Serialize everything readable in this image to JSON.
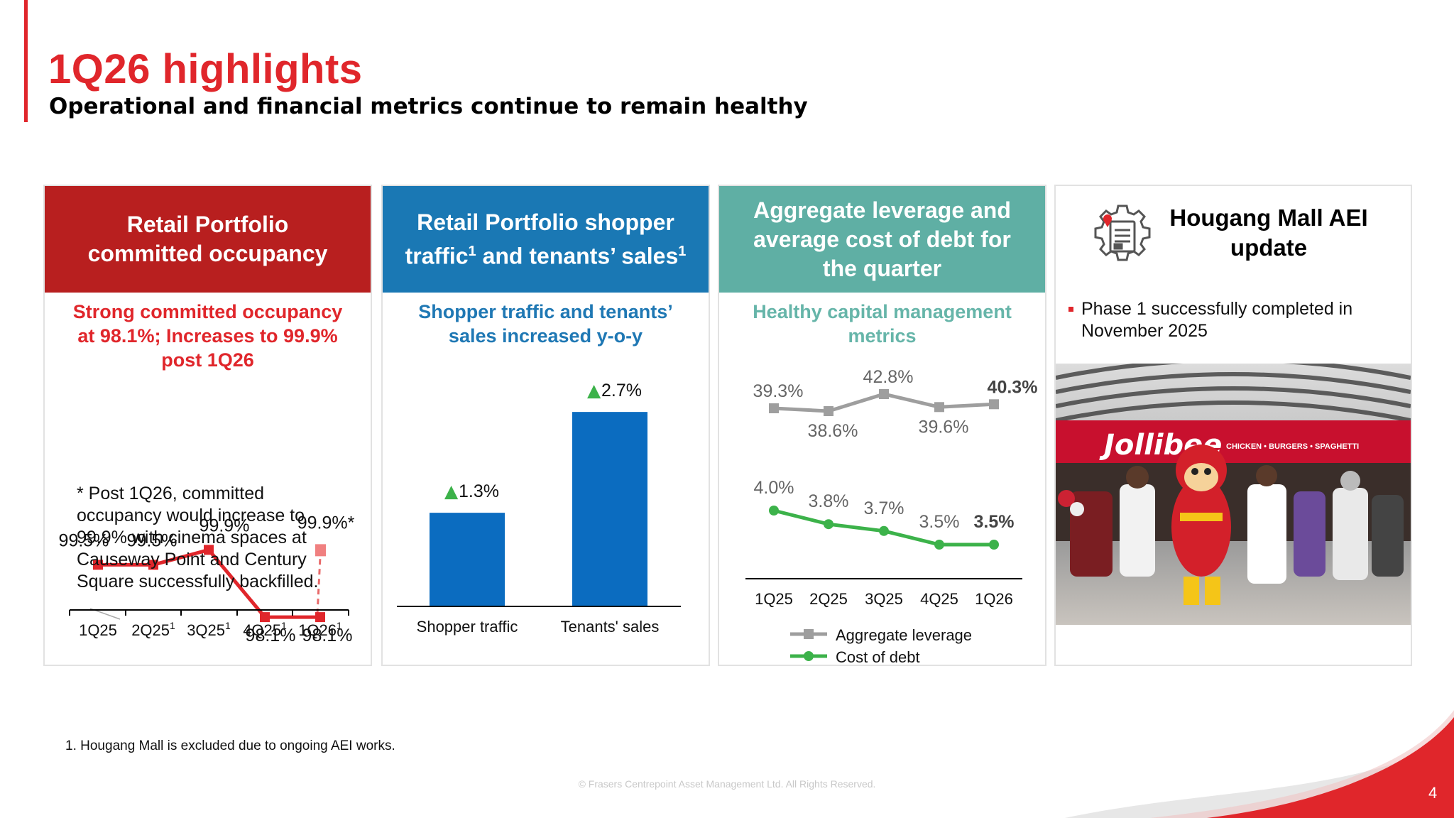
{
  "header": {
    "title": "1Q26 highlights",
    "subtitle": "Operational and financial metrics continue to remain healthy"
  },
  "colors": {
    "brand_red": "#e0262b",
    "panel_red": "#b81f1f",
    "panel_blue": "#1a78b4",
    "panel_teal": "#5fafa4",
    "bar_blue": "#0b6cc0",
    "green": "#3cb24a",
    "grey": "#9e9e9e",
    "sub_blue": "#1f78b4",
    "sub_teal": "#66b5a9"
  },
  "panels": {
    "occupancy": {
      "heading_line1": "Retail Portfolio",
      "heading_line2": "committed occupancy",
      "subheading_line1": "Strong committed occupancy",
      "subheading_line2": "at 98.1%; Increases to 99.9%",
      "subheading_line3": "post 1Q26",
      "note_line1": "* Post 1Q26, committed",
      "note_line2": "occupancy would increase to",
      "note_line3": "99.9% with cinema spaces at",
      "note_line4": "Causeway Point and Century",
      "note_line5": "Square successfully backfilled."
    },
    "traffic": {
      "heading_line1": "Retail Portfolio shopper",
      "heading_line2a": "traffic",
      "heading_line2b": " and tenants’ sales",
      "heading_sup": "1",
      "subheading_line1": "Shopper traffic and tenants’",
      "subheading_line2": "sales increased y-o-y"
    },
    "leverage": {
      "heading_line1": "Aggregate leverage and",
      "heading_line2": "average cost of debt for",
      "heading_line3": "the quarter",
      "subheading_line1": "Healthy capital management",
      "subheading_line2": "metrics"
    },
    "hougang": {
      "heading_line1": "Hougang Mall AEI",
      "heading_line2": "update",
      "bullet": "Phase 1 successfully completed in November 2025",
      "photo_sign": "Jollibee",
      "photo_tagline": "CHICKEN • BURGERS • SPAGHETTI"
    }
  },
  "chart_data": [
    {
      "type": "line",
      "title": "Retail Portfolio committed occupancy",
      "categories": [
        "1Q25",
        "2Q25",
        "3Q25",
        "4Q25",
        "1Q26"
      ],
      "category_superscripts": [
        "",
        "1",
        "1",
        "1",
        "1"
      ],
      "series": [
        {
          "name": "Committed occupancy",
          "values": [
            99.5,
            99.5,
            99.9,
            98.1,
            98.1
          ],
          "labels": [
            "99.5%",
            "99.5%",
            "99.9%",
            "98.1%",
            "98.1%"
          ]
        }
      ],
      "post_period": {
        "from_category": "1Q26",
        "value": 99.9,
        "label": "99.9%*"
      },
      "ylim": [
        97.0,
        100.8
      ]
    },
    {
      "type": "bar",
      "title": "Retail Portfolio shopper traffic and tenants’ sales",
      "categories": [
        "Shopper traffic",
        "Tenants' sales"
      ],
      "values": [
        1.3,
        2.7
      ],
      "labels": [
        "1.3%",
        "2.7%"
      ],
      "marker": "▲",
      "ylim": [
        0,
        2.8
      ]
    },
    {
      "type": "line",
      "title": "Aggregate leverage and average cost of debt for the quarter",
      "categories": [
        "1Q25",
        "2Q25",
        "3Q25",
        "4Q25",
        "1Q26"
      ],
      "series": [
        {
          "name": "Aggregate leverage",
          "values": [
            39.3,
            38.6,
            42.8,
            39.6,
            40.3
          ],
          "labels": [
            "39.3%",
            "38.6%",
            "42.8%",
            "39.6%",
            "40.3%"
          ]
        },
        {
          "name": "Cost of debt",
          "values": [
            4.0,
            3.8,
            3.7,
            3.5,
            3.5
          ],
          "labels": [
            "4.0%",
            "3.8%",
            "3.7%",
            "3.5%",
            "3.5%"
          ]
        }
      ],
      "legend": "bottom"
    }
  ],
  "footer": {
    "footnote_num": "1.",
    "footnote": "Hougang Mall is excluded due to ongoing AEI works.",
    "copyright": "© Frasers Centrepoint Asset Management Ltd. All Rights Reserved.",
    "page_number": "4"
  }
}
